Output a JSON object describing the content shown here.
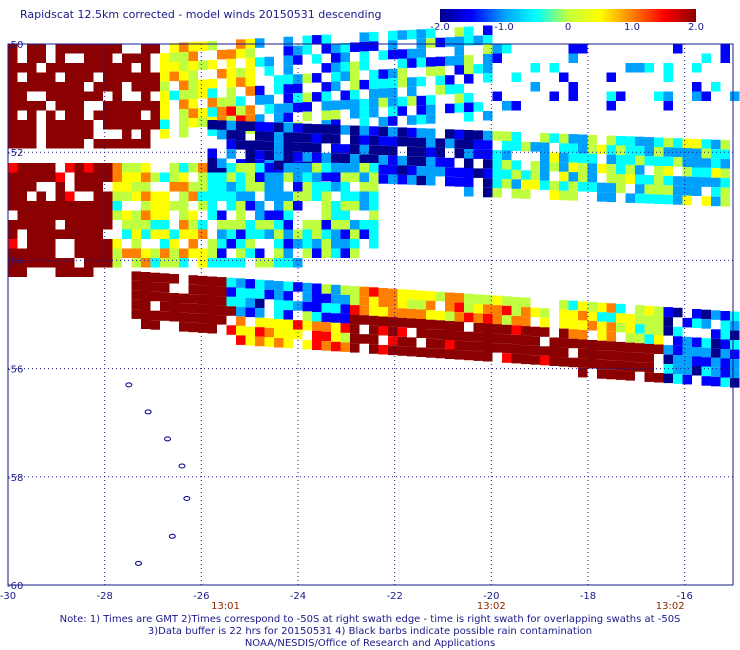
{
  "title": "Rapidscat 12.5km corrected - model winds 20150531 descending",
  "colorbar": {
    "min": -2.0,
    "max": 2.0,
    "tick_labels": [
      "-2.0",
      "-1.0",
      "0",
      "1.0",
      "2.0"
    ],
    "tick_values": [
      -2.0,
      -1.0,
      0,
      1.0,
      2.0
    ],
    "colormap": [
      "#00008c",
      "#0000ff",
      "#00a0ff",
      "#00ffff",
      "#c0ff40",
      "#ffff00",
      "#ff8000",
      "#ff0000",
      "#8b0000"
    ]
  },
  "chart_data": {
    "type": "heatmap",
    "title": "Rapidscat 12.5km corrected - model winds 20150531 descending",
    "xlim": [
      -30,
      -15
    ],
    "ylim": [
      -60,
      -50
    ],
    "x_ticks": [
      -30,
      -28,
      -26,
      -24,
      -22,
      -20,
      -18,
      -16
    ],
    "x_tick_labels": [
      "-30",
      "-28",
      "-26",
      "-24",
      "-22",
      "-20",
      "-18",
      "-16"
    ],
    "y_ticks": [
      -50,
      -52,
      -54,
      -56,
      -58,
      -60
    ],
    "y_tick_labels": [
      "-50",
      "-52",
      "-54",
      "-56",
      "-58",
      "-60"
    ],
    "grid": true,
    "time_labels": [
      {
        "x": -25.5,
        "label": "13:01"
      },
      {
        "x": -20.0,
        "label": "13:02"
      },
      {
        "x": -16.3,
        "label": "13:02"
      }
    ],
    "swaths": [
      {
        "name": "",
        "value_pattern": "strongly positive west (>2), decreasing eastward",
        "lat_north": -50.0,
        "lat_south": -52.0,
        "lon_west": -30.0,
        "lon_east": -20.0
      },
      {
        "name": "",
        "value_pattern": "negative (-1 to -2), mid swath",
        "lat_north": -51.6,
        "lat_south": -53.0,
        "lon_west": -26.0,
        "lon_east": -15.2
      },
      {
        "name": "",
        "value_pattern": "mixed, positive west, near zero east",
        "lat_north": -52.8,
        "lat_south": -54.5,
        "lon_west": -30.0,
        "lon_east": -22.5
      },
      {
        "name": "",
        "value_pattern": "positive (>2) in west and east segments",
        "lat_north": -54.2,
        "lat_south": -56.3,
        "lon_west": -27.5,
        "lon_east": -15.0
      }
    ],
    "land_outlines": "small island contours near -27 to -26 lon, -56.5 to -59.5 lat"
  },
  "notes": {
    "line1": "Note: 1) Times are GMT 2)Times correspond to -50S at right swath edge - time is right swath for overlapping swaths at -50S",
    "line2": "3)Data buffer is 22 hrs for 20150531 4) Black barbs indicate possible rain contamination",
    "line3": "NOAA/NESDIS/Office of Research and Applications"
  }
}
